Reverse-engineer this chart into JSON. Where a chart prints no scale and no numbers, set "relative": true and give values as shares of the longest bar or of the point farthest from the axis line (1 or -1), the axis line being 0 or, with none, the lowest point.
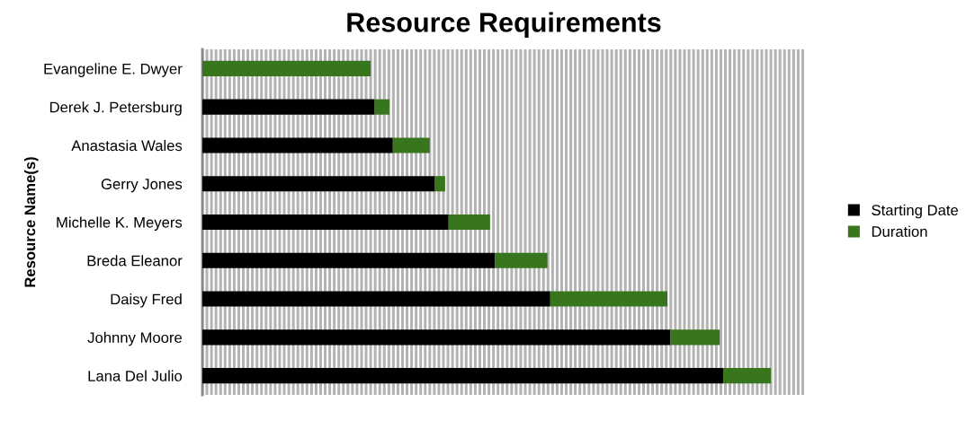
{
  "chart_data": {
    "type": "bar",
    "orientation": "horizontal",
    "stacked": true,
    "relative": true,
    "title": "Resource Requirements",
    "ylabel": "Resource Name(s)",
    "categories": [
      "Evangeline E. Dwyer",
      "Derek J. Petersburg",
      "Anastasia Wales",
      "Gerry Jones",
      "Michelle K. Meyers",
      "Breda Eleanor",
      "Daisy Fred",
      "Johnny Moore",
      "Lana Del Julio"
    ],
    "series": [
      {
        "name": "Starting Date",
        "color": "#000000",
        "values": [
          0,
          0.303,
          0.335,
          0.409,
          0.433,
          0.515,
          0.612,
          0.823,
          0.916
        ]
      },
      {
        "name": "Duration",
        "color": "#38761d",
        "values": [
          0.296,
          0.026,
          0.065,
          0.018,
          0.073,
          0.092,
          0.206,
          0.087,
          0.084
        ]
      }
    ],
    "grid": "x",
    "legend": "right"
  }
}
